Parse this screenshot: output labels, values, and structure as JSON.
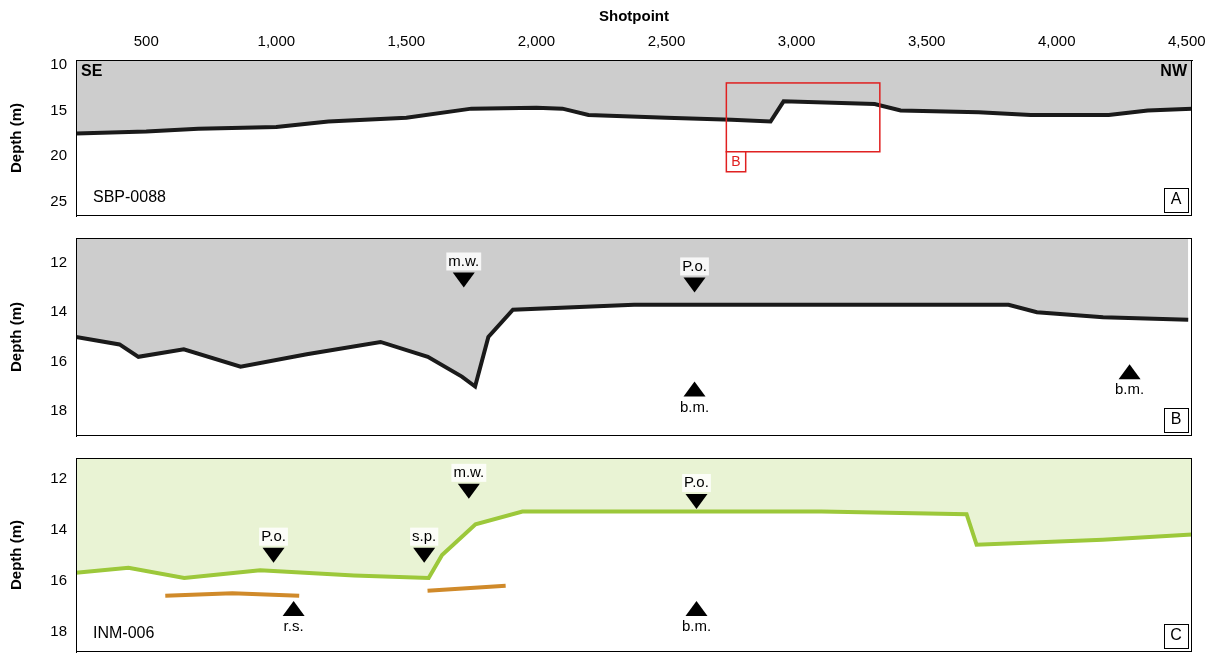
{
  "chart_data": [
    {
      "type": "line",
      "panel": "A",
      "x_label": "Shotpoint",
      "y_label": "Depth (m)",
      "texts": {
        "top_left": "SE",
        "top_right": "NW",
        "bottom_left": "SBP-0088"
      },
      "xlim": [
        230,
        4520
      ],
      "xticks": [
        500,
        1000,
        1500,
        2000,
        2500,
        3000,
        3500,
        4000,
        4500
      ],
      "ylim": [
        9.5,
        26.5
      ],
      "yticks": [
        10,
        15,
        20,
        25
      ],
      "grid": false,
      "series": [
        {
          "color": "#1a1a1a",
          "x": [
            230,
            500,
            700,
            1000,
            1200,
            1500,
            1750,
            2000,
            2100,
            2200,
            2500,
            2750,
            2900,
            2950,
            3300,
            3400,
            3700,
            3900,
            4200,
            4350,
            4520
          ],
          "values": [
            17.5,
            17.3,
            17.0,
            16.8,
            16.2,
            15.8,
            14.8,
            14.7,
            14.8,
            15.5,
            15.8,
            16.0,
            16.2,
            14.0,
            14.3,
            15.0,
            15.2,
            15.5,
            15.5,
            15.0,
            14.8
          ]
        }
      ],
      "box": {
        "x": [
          2730,
          3320
        ],
        "y": [
          12,
          19.5
        ],
        "label": "B",
        "color": "#e02020"
      }
    },
    {
      "type": "line",
      "panel": "B",
      "y_label": "Depth (m)",
      "tick_labels": "y",
      "xlim": [
        2730,
        3320
      ],
      "ylim": [
        11,
        19
      ],
      "yticks": [
        12,
        14,
        16,
        18
      ],
      "grid": false,
      "series": [
        {
          "color": "#1a1a1a",
          "x": [
            2730,
            2753,
            2763,
            2787,
            2817,
            2852,
            2891,
            2916,
            2934,
            2941,
            2948,
            2961,
            3025,
            3223,
            3238,
            3273,
            3318
          ],
          "values": [
            15.0,
            15.3,
            15.8,
            15.5,
            16.2,
            15.7,
            15.2,
            15.8,
            16.6,
            17.0,
            15.0,
            13.9,
            13.7,
            13.7,
            14.0,
            14.2,
            14.3
          ]
        }
      ],
      "annotations": [
        {
          "text": "m.w.",
          "x": 2935,
          "y": 13.0,
          "direction": "down"
        },
        {
          "text": "P.o.",
          "x": 3057,
          "y": 13.2,
          "direction": "down"
        },
        {
          "text": "b.m.",
          "x": 3057,
          "y": 16.8,
          "direction": "up"
        },
        {
          "text": "b.m.",
          "x": 3287,
          "y": 16.1,
          "direction": "up"
        }
      ]
    },
    {
      "type": "line",
      "panel": "C",
      "y_label": "Depth (m)",
      "tick_labels": "y",
      "texts": {
        "bottom_left": "INM-006"
      },
      "xlim": [
        0,
        100
      ],
      "ylim": [
        11.2,
        18.8
      ],
      "yticks": [
        12,
        14,
        16,
        18
      ],
      "grid": false,
      "series": [
        {
          "color": "#9cc83a",
          "x": [
            0,
            4.7,
            9.7,
            16.5,
            24.9,
            31.6,
            32.8,
            35.8,
            40,
            66.8,
            79.8,
            80.7,
            92,
            100
          ],
          "values": [
            15.7,
            15.5,
            15.9,
            15.6,
            15.8,
            15.9,
            15.0,
            13.8,
            13.3,
            13.3,
            13.4,
            14.6,
            14.4,
            14.2
          ]
        },
        {
          "color": "#d08a2a",
          "x": [
            8,
            14,
            20,
            21,
            31.5,
            35,
            38.5
          ],
          "values": [
            16.6,
            16.5,
            16.6,
            null,
            16.4,
            16.3,
            16.2
          ]
        }
      ],
      "annotations": [
        {
          "text": "P.o.",
          "x": 17.7,
          "y": 15.3,
          "direction": "down"
        },
        {
          "text": "r.s.",
          "x": 19.5,
          "y": 16.8,
          "direction": "up"
        },
        {
          "text": "s.p.",
          "x": 31.2,
          "y": 15.3,
          "direction": "down"
        },
        {
          "text": "m.w.",
          "x": 35.2,
          "y": 12.8,
          "direction": "down"
        },
        {
          "text": "P.o.",
          "x": 55.6,
          "y": 13.2,
          "direction": "down"
        },
        {
          "text": "b.m.",
          "x": 55.6,
          "y": 16.8,
          "direction": "up"
        }
      ]
    }
  ]
}
